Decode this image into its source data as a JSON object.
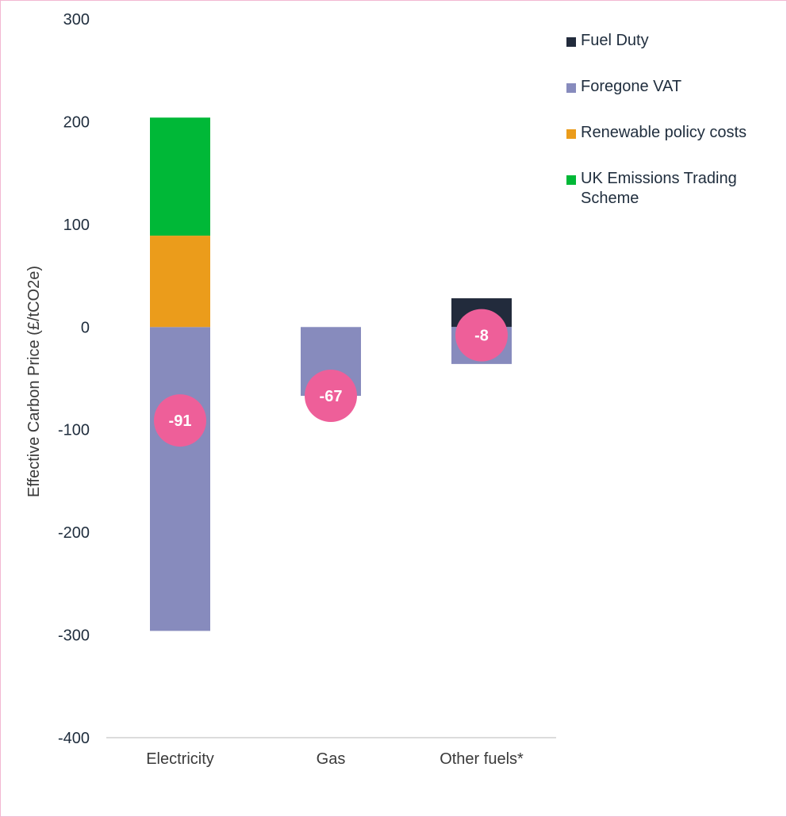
{
  "chart_data": {
    "type": "bar",
    "stacked": true,
    "categories": [
      "Electricity",
      "Gas",
      "Other fuels*"
    ],
    "ylabel": "Effective Carbon Price (£/tCO2e)",
    "ylim": [
      -400,
      300
    ],
    "yticks": [
      300,
      200,
      100,
      0,
      -100,
      -200,
      -300,
      -400
    ],
    "grid": false,
    "legend_position": "top-right",
    "series": [
      {
        "name": "Fuel Duty",
        "color": "#222b3c",
        "values": [
          0,
          0,
          28
        ]
      },
      {
        "name": "Foregone VAT",
        "color": "#878bbd",
        "values": [
          -296,
          -67,
          -36
        ]
      },
      {
        "name": "Renewable policy costs",
        "color": "#eb9c1b",
        "values": [
          89,
          0,
          0
        ]
      },
      {
        "name": "UK Emissions Trading Scheme",
        "color": "#00b837",
        "values": [
          115,
          0,
          0
        ]
      }
    ],
    "net_markers": {
      "color": "#ee5f99",
      "values": [
        -91,
        -67,
        -8
      ],
      "labels": [
        "-91",
        "-67",
        "-8"
      ]
    }
  }
}
